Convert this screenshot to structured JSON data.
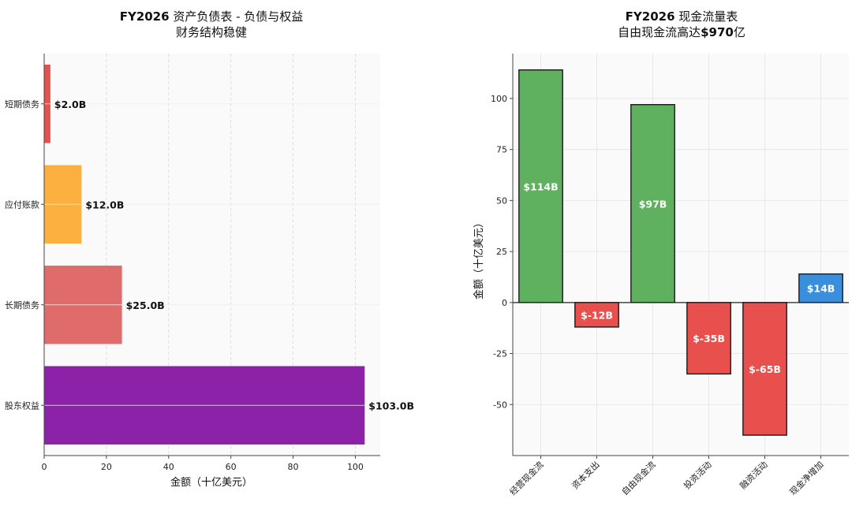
{
  "chart_data": [
    {
      "type": "bar",
      "orientation": "horizontal",
      "title_bold": "FY2026",
      "title_rest": " 资产负债表 - 负债与权益",
      "subtitle": "财务结构稳健",
      "xlabel": "金额（十亿美元）",
      "ylabel": "",
      "xlim": [
        0,
        108
      ],
      "xticks": [
        0,
        20,
        40,
        60,
        80,
        100
      ],
      "categories": [
        "短期债务",
        "应付账款",
        "长期债务",
        "股东权益"
      ],
      "values": [
        2.0,
        12.0,
        25.0,
        103.0
      ],
      "labels": [
        "$2.0B",
        "$12.0B",
        "$25.0B",
        "$103.0B"
      ],
      "colors": [
        "#e8504d",
        "#fbb040",
        "#e06b6b",
        "#8b22a8"
      ],
      "grid": true,
      "legend": "none"
    },
    {
      "type": "bar",
      "title_bold": "FY2026",
      "title_rest": " 现金流量表",
      "subtitle_rest": "自由现金流高达",
      "subtitle_bold": "$970",
      "subtitle_end": "亿",
      "xlabel": "",
      "ylabel": "金额（十亿美元）",
      "ylim": [
        -75,
        122
      ],
      "yticks": [
        -50,
        -25,
        0,
        25,
        50,
        75,
        100
      ],
      "categories": [
        "经营现金流",
        "资本支出",
        "自由现金流",
        "投资活动",
        "融资活动",
        "现金净增加"
      ],
      "values": [
        114,
        -12,
        97,
        -35,
        -65,
        14
      ],
      "labels": [
        "$114B",
        "$-12B",
        "$97B",
        "$-35B",
        "$-65B",
        "$14B"
      ],
      "colors": [
        "#5fb05f",
        "#e8504d",
        "#5fb05f",
        "#e8504d",
        "#e8504d",
        "#3a8fdc"
      ],
      "grid": true,
      "legend": "none"
    }
  ]
}
